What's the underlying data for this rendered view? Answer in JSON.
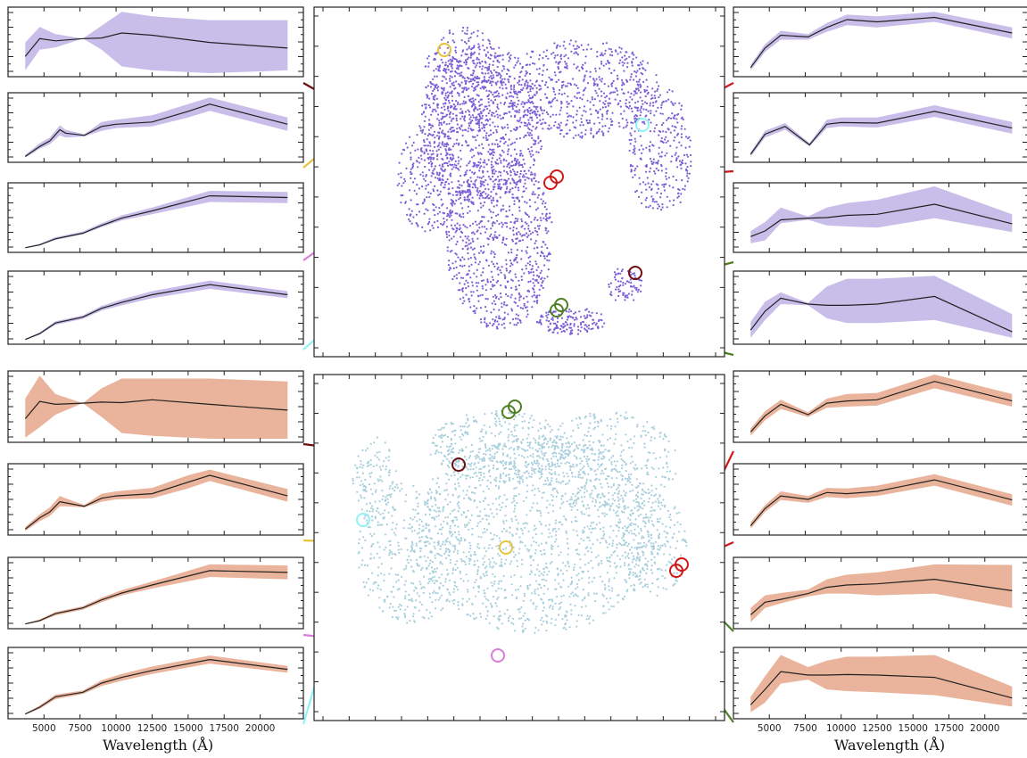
{
  "figure": {
    "xlabel": "Wavelength (Å)",
    "x_ticks": [
      5000,
      7500,
      10000,
      12500,
      15000,
      17500,
      20000
    ],
    "xlim": [
      3000,
      22500
    ],
    "colors": {
      "umap_top_points": "#7b5fd6",
      "umap_bottom_points": "#a9cfdc",
      "band_top": "#c9bdea",
      "band_bottom": "#eab39b",
      "median_line": "#222222",
      "dark_red": "#6e0d0d",
      "yellow": "#e6c43c",
      "pink": "#d77fd6",
      "cyan": "#8ff2f5",
      "red": "#d01818",
      "green": "#4f7f24"
    }
  },
  "chart_data": [
    {
      "type": "line",
      "panel": "top-left-1",
      "x": [
        3700,
        4700,
        5800,
        7700,
        9000,
        10400,
        12500,
        16500,
        21900
      ],
      "median": [
        0.3,
        0.62,
        0.58,
        0.62,
        0.63,
        0.72,
        0.68,
        0.55,
        0.45
      ],
      "band_low": [
        0.05,
        0.42,
        0.46,
        0.62,
        0.42,
        0.12,
        0.05,
        0.0,
        0.05
      ],
      "band_high": [
        0.55,
        0.83,
        0.7,
        0.62,
        0.85,
        1.1,
        1.02,
        0.95,
        0.95
      ]
    },
    {
      "type": "line",
      "panel": "top-left-2",
      "x": [
        3700,
        4700,
        5400,
        6100,
        6500,
        7800,
        9000,
        10000,
        12500,
        15000,
        16500,
        21900
      ],
      "median": [
        0.04,
        0.22,
        0.32,
        0.52,
        0.46,
        0.42,
        0.58,
        0.62,
        0.66,
        0.85,
        0.98,
        0.62
      ],
      "band_low": [
        0.02,
        0.18,
        0.26,
        0.42,
        0.38,
        0.4,
        0.5,
        0.55,
        0.58,
        0.74,
        0.86,
        0.5
      ],
      "band_high": [
        0.07,
        0.28,
        0.38,
        0.6,
        0.52,
        0.44,
        0.66,
        0.7,
        0.78,
        0.98,
        1.1,
        0.74
      ]
    },
    {
      "type": "line",
      "panel": "top-left-3",
      "x": [
        3700,
        4700,
        5800,
        7700,
        9000,
        10400,
        12500,
        16500,
        21900
      ],
      "median": [
        0.02,
        0.07,
        0.18,
        0.28,
        0.42,
        0.55,
        0.68,
        0.95,
        0.92
      ],
      "band_low": [
        0.01,
        0.06,
        0.16,
        0.26,
        0.39,
        0.51,
        0.62,
        0.84,
        0.82
      ],
      "band_high": [
        0.03,
        0.09,
        0.21,
        0.31,
        0.46,
        0.6,
        0.74,
        1.04,
        1.02
      ]
    },
    {
      "type": "line",
      "panel": "top-left-4",
      "x": [
        3700,
        4700,
        5800,
        7700,
        9000,
        10400,
        12500,
        16500,
        21900
      ],
      "median": [
        0.02,
        0.12,
        0.3,
        0.4,
        0.55,
        0.65,
        0.78,
        0.95,
        0.78
      ],
      "band_low": [
        0.01,
        0.1,
        0.27,
        0.37,
        0.51,
        0.6,
        0.72,
        0.88,
        0.72
      ],
      "band_high": [
        0.03,
        0.14,
        0.33,
        0.43,
        0.59,
        0.7,
        0.84,
        1.02,
        0.84
      ]
    },
    {
      "type": "line",
      "panel": "bottom-left-1",
      "x": [
        3700,
        4700,
        5800,
        7700,
        9000,
        10400,
        12500,
        16500,
        21900
      ],
      "median": [
        0.35,
        0.65,
        0.6,
        0.62,
        0.64,
        0.63,
        0.68,
        0.6,
        0.5
      ],
      "band_low": [
        0.02,
        0.2,
        0.42,
        0.62,
        0.38,
        0.1,
        0.05,
        0.0,
        0.0
      ],
      "band_high": [
        0.7,
        1.1,
        0.78,
        0.62,
        0.88,
        1.05,
        1.05,
        1.05,
        1.0
      ]
    },
    {
      "type": "line",
      "panel": "bottom-left-2",
      "x": [
        3700,
        4700,
        5400,
        6100,
        6500,
        7800,
        9000,
        10000,
        12500,
        15000,
        16500,
        21900
      ],
      "median": [
        0.04,
        0.24,
        0.34,
        0.52,
        0.5,
        0.44,
        0.58,
        0.62,
        0.66,
        0.86,
        0.98,
        0.62
      ],
      "band_low": [
        0.01,
        0.18,
        0.27,
        0.44,
        0.44,
        0.42,
        0.52,
        0.56,
        0.58,
        0.75,
        0.88,
        0.52
      ],
      "band_high": [
        0.08,
        0.3,
        0.42,
        0.62,
        0.58,
        0.46,
        0.66,
        0.7,
        0.76,
        0.98,
        1.08,
        0.74
      ]
    },
    {
      "type": "line",
      "panel": "bottom-left-3",
      "x": [
        3700,
        4700,
        5800,
        7700,
        9000,
        10400,
        12500,
        16500,
        21900
      ],
      "median": [
        0.02,
        0.08,
        0.2,
        0.3,
        0.44,
        0.56,
        0.7,
        0.95,
        0.92
      ],
      "band_low": [
        0.01,
        0.06,
        0.17,
        0.27,
        0.4,
        0.52,
        0.64,
        0.84,
        0.8
      ],
      "band_high": [
        0.03,
        0.1,
        0.23,
        0.33,
        0.48,
        0.61,
        0.76,
        1.06,
        1.04
      ]
    },
    {
      "type": "line",
      "panel": "bottom-left-4",
      "x": [
        3700,
        4700,
        5800,
        7700,
        9000,
        10400,
        12500,
        16500,
        21900
      ],
      "median": [
        0.02,
        0.14,
        0.32,
        0.4,
        0.56,
        0.66,
        0.78,
        0.97,
        0.8
      ],
      "band_low": [
        0.01,
        0.11,
        0.28,
        0.37,
        0.51,
        0.6,
        0.72,
        0.9,
        0.74
      ],
      "band_high": [
        0.03,
        0.17,
        0.36,
        0.43,
        0.61,
        0.72,
        0.85,
        1.04,
        0.86
      ]
    },
    {
      "type": "line",
      "panel": "top-right-1",
      "x": [
        3700,
        4700,
        5800,
        7700,
        9000,
        10400,
        12500,
        16500,
        21900
      ],
      "median": [
        0.1,
        0.45,
        0.68,
        0.65,
        0.82,
        0.96,
        0.92,
        1.0,
        0.72
      ],
      "band_low": [
        0.05,
        0.38,
        0.6,
        0.6,
        0.74,
        0.86,
        0.82,
        0.92,
        0.62
      ],
      "band_high": [
        0.15,
        0.52,
        0.76,
        0.7,
        0.9,
        1.05,
        1.02,
        1.1,
        0.82
      ]
    },
    {
      "type": "line",
      "panel": "top-right-2",
      "x": [
        3700,
        4700,
        6100,
        7800,
        9000,
        10000,
        12500,
        16500,
        21900
      ],
      "median": [
        0.08,
        0.44,
        0.58,
        0.25,
        0.62,
        0.65,
        0.64,
        0.85,
        0.55
      ],
      "band_low": [
        0.04,
        0.38,
        0.52,
        0.22,
        0.55,
        0.58,
        0.56,
        0.75,
        0.45
      ],
      "band_high": [
        0.12,
        0.5,
        0.64,
        0.28,
        0.7,
        0.74,
        0.74,
        0.96,
        0.66
      ]
    },
    {
      "type": "line",
      "panel": "top-right-3",
      "x": [
        3700,
        4700,
        5800,
        7700,
        9000,
        10400,
        12500,
        16500,
        21900
      ],
      "median": [
        0.22,
        0.32,
        0.52,
        0.55,
        0.56,
        0.6,
        0.62,
        0.8,
        0.45
      ],
      "band_low": [
        0.1,
        0.15,
        0.46,
        0.52,
        0.42,
        0.4,
        0.38,
        0.55,
        0.3
      ],
      "band_high": [
        0.32,
        0.48,
        0.74,
        0.58,
        0.74,
        0.82,
        0.88,
        1.12,
        0.62
      ]
    },
    {
      "type": "line",
      "panel": "top-right-4",
      "x": [
        3700,
        4700,
        5800,
        7700,
        9000,
        10400,
        12500,
        16500,
        21900
      ],
      "median": [
        0.18,
        0.5,
        0.72,
        0.62,
        0.6,
        0.6,
        0.62,
        0.75,
        0.15
      ],
      "band_low": [
        0.05,
        0.35,
        0.62,
        0.6,
        0.38,
        0.3,
        0.3,
        0.35,
        0.05
      ],
      "band_high": [
        0.32,
        0.66,
        0.82,
        0.64,
        0.92,
        1.05,
        1.05,
        1.1,
        0.45
      ]
    },
    {
      "type": "line",
      "panel": "bottom-right-1",
      "x": [
        3700,
        4700,
        5800,
        7700,
        9000,
        10400,
        12500,
        16500,
        21900
      ],
      "median": [
        0.12,
        0.4,
        0.6,
        0.42,
        0.62,
        0.66,
        0.68,
        1.0,
        0.66
      ],
      "band_low": [
        0.05,
        0.32,
        0.52,
        0.38,
        0.54,
        0.56,
        0.58,
        0.88,
        0.56
      ],
      "band_high": [
        0.18,
        0.48,
        0.68,
        0.46,
        0.7,
        0.78,
        0.8,
        1.12,
        0.78
      ]
    },
    {
      "type": "line",
      "panel": "bottom-right-2",
      "x": [
        3700,
        4700,
        5800,
        7700,
        9000,
        10400,
        12500,
        16500,
        21900
      ],
      "median": [
        0.1,
        0.4,
        0.62,
        0.56,
        0.68,
        0.66,
        0.7,
        0.9,
        0.55
      ],
      "band_low": [
        0.05,
        0.34,
        0.55,
        0.5,
        0.6,
        0.58,
        0.62,
        0.8,
        0.45
      ],
      "band_high": [
        0.16,
        0.46,
        0.7,
        0.62,
        0.76,
        0.75,
        0.8,
        1.0,
        0.65
      ]
    },
    {
      "type": "line",
      "panel": "bottom-right-3",
      "x": [
        3700,
        4700,
        5800,
        7700,
        9000,
        10400,
        12500,
        16500,
        21900
      ],
      "median": [
        0.18,
        0.4,
        0.45,
        0.55,
        0.66,
        0.7,
        0.72,
        0.8,
        0.6
      ],
      "band_low": [
        0.05,
        0.3,
        0.38,
        0.5,
        0.55,
        0.55,
        0.52,
        0.55,
        0.3
      ],
      "band_high": [
        0.3,
        0.52,
        0.56,
        0.62,
        0.8,
        0.88,
        0.92,
        1.06,
        1.05
      ]
    },
    {
      "type": "line",
      "panel": "bottom-right-4",
      "x": [
        3700,
        4700,
        5800,
        7700,
        9000,
        10400,
        12500,
        16500,
        21900
      ],
      "median": [
        0.18,
        0.45,
        0.76,
        0.7,
        0.7,
        0.71,
        0.7,
        0.66,
        0.3
      ],
      "band_low": [
        0.05,
        0.22,
        0.55,
        0.62,
        0.45,
        0.42,
        0.4,
        0.35,
        0.15
      ],
      "band_high": [
        0.32,
        0.68,
        1.05,
        0.84,
        0.95,
        1.02,
        1.02,
        1.05,
        0.5
      ]
    },
    {
      "type": "scatter",
      "panel": "umap-top"
    },
    {
      "type": "scatter",
      "panel": "umap-bottom"
    }
  ]
}
